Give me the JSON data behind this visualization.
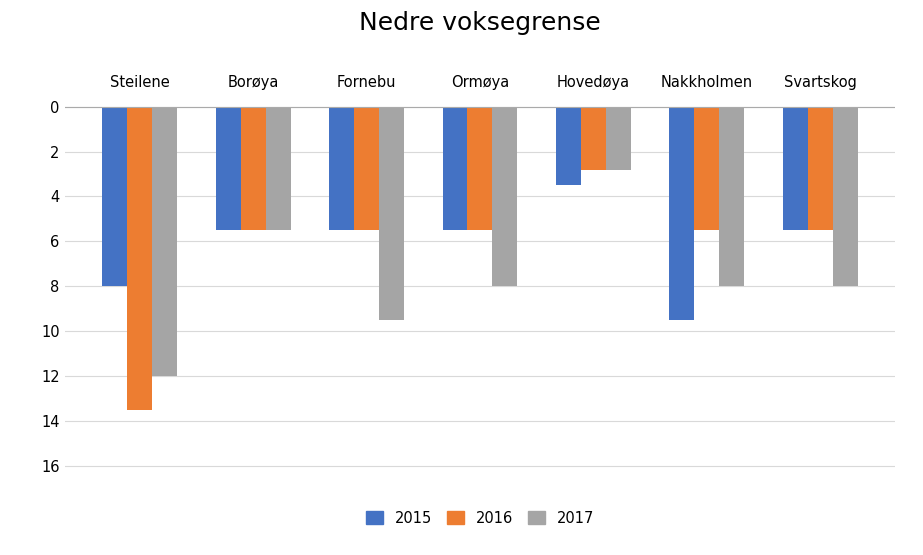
{
  "title": "Nedre voksegrense",
  "categories": [
    "Steilene",
    "Borøya",
    "Fornebu",
    "Ormøya",
    "Hovedøya",
    "Nakkholmen",
    "Svartskog"
  ],
  "series": {
    "2015": [
      -8.0,
      -5.5,
      -5.5,
      -5.5,
      -3.5,
      -9.5,
      -5.5
    ],
    "2016": [
      -13.5,
      -5.5,
      -5.5,
      -5.5,
      -2.8,
      -5.5,
      -5.5
    ],
    "2017": [
      -12.0,
      -5.5,
      -9.5,
      -8.0,
      -2.8,
      -8.0,
      -8.0
    ]
  },
  "colors": {
    "2015": "#4472C4",
    "2016": "#ED7D31",
    "2017": "#A5A5A5"
  },
  "ylim": [
    -17,
    0.3
  ],
  "yticks": [
    0,
    2,
    4,
    6,
    8,
    10,
    12,
    14,
    16
  ],
  "bar_width": 0.22,
  "background_color": "#ffffff",
  "grid_color": "#d9d9d9",
  "title_fontsize": 18,
  "label_fontsize": 10.5,
  "legend_fontsize": 10.5
}
